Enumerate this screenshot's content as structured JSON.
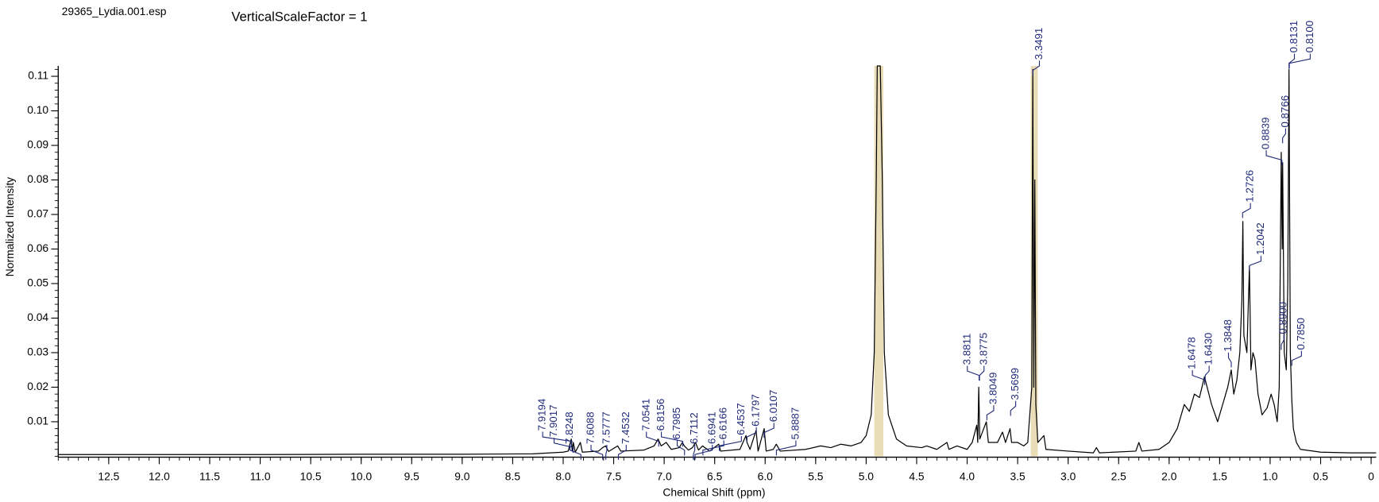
{
  "chart_data": {
    "type": "line",
    "file_name": "29365_Lydia.001.esp",
    "scale_note": "VerticalScaleFactor = 1",
    "xlabel": "Chemical Shift (ppm)",
    "ylabel": "Normalized Intensity",
    "xlim": [
      13.0,
      -0.05
    ],
    "ylim": [
      0,
      0.113
    ],
    "xticks": [
      12.5,
      {
        "value": 12,
        "label": "12.0"
      },
      11.5,
      {
        "value": 11,
        "label": "11.0"
      },
      10.5,
      {
        "value": 10,
        "label": "10.0"
      },
      9.5,
      {
        "value": 9,
        "label": "9.0"
      },
      8.5,
      {
        "value": 8,
        "label": "8.0"
      },
      7.5,
      {
        "value": 7,
        "label": "7.0"
      },
      6.5,
      {
        "value": 6,
        "label": "6.0"
      },
      5.5,
      {
        "value": 5,
        "label": "5.0"
      },
      4.5,
      {
        "value": 4,
        "label": "4.0"
      },
      3.5,
      {
        "value": 3,
        "label": "3.0"
      },
      2.5,
      {
        "value": 2,
        "label": "2.0"
      },
      1.5,
      {
        "value": 1,
        "label": "1.0"
      },
      0.5,
      0
    ],
    "yticks": [
      0.01,
      0.02,
      0.03,
      0.04,
      0.05,
      0.06,
      0.07,
      0.08,
      0.09,
      {
        "value": 0.1,
        "label": "0.10"
      },
      0.11
    ],
    "color": "#000000",
    "label_color": "#1f2a7a",
    "shade_color": "#e9ddb8",
    "shaded_regions": [
      [
        4.92,
        4.83
      ],
      [
        3.37,
        3.3
      ]
    ],
    "x": [
      13.0,
      12.0,
      11.0,
      10.0,
      9.0,
      8.3,
      8.0,
      7.95,
      7.92,
      7.91,
      7.9,
      7.88,
      7.83,
      7.81,
      7.65,
      7.61,
      7.58,
      7.55,
      7.46,
      7.43,
      7.2,
      7.1,
      7.06,
      7.03,
      6.98,
      6.93,
      6.85,
      6.82,
      6.8,
      6.76,
      6.72,
      6.69,
      6.66,
      6.62,
      6.55,
      6.46,
      6.44,
      6.25,
      6.19,
      6.18,
      6.15,
      6.09,
      6.07,
      6.01,
      5.99,
      5.92,
      5.89,
      5.85,
      5.6,
      5.45,
      5.35,
      5.25,
      5.15,
      5.05,
      5.0,
      4.95,
      4.92,
      4.9,
      4.89,
      4.86,
      4.84,
      4.82,
      4.78,
      4.7,
      4.6,
      4.45,
      4.4,
      4.3,
      4.2,
      4.18,
      4.1,
      4.0,
      3.95,
      3.905,
      3.895,
      3.885,
      3.875,
      3.81,
      3.79,
      3.7,
      3.65,
      3.62,
      3.575,
      3.56,
      3.5,
      3.44,
      3.4,
      3.36,
      3.35,
      3.34,
      3.33,
      3.32,
      3.3,
      3.24,
      3.22,
      3.0,
      2.75,
      2.72,
      2.69,
      2.33,
      2.3,
      2.27,
      2.1,
      2.0,
      1.92,
      1.85,
      1.8,
      1.75,
      1.7,
      1.65,
      1.58,
      1.52,
      1.47,
      1.42,
      1.385,
      1.36,
      1.33,
      1.3,
      1.28,
      1.27,
      1.26,
      1.23,
      1.205,
      1.19,
      1.17,
      1.15,
      1.12,
      1.08,
      1.03,
      0.99,
      0.96,
      0.93,
      0.91,
      0.89,
      0.88,
      0.876,
      0.86,
      0.84,
      0.825,
      0.813,
      0.81,
      0.8,
      0.785,
      0.77,
      0.74,
      0.7,
      0.5,
      0.2,
      -0.05
    ],
    "values": [
      0.0005,
      0.0005,
      0.0005,
      0.0006,
      0.0006,
      0.0007,
      0.0012,
      0.0015,
      0.005,
      0.0015,
      0.004,
      0.0012,
      0.004,
      0.0012,
      0.0015,
      0.0025,
      0.003,
      0.0014,
      0.003,
      0.0015,
      0.0018,
      0.003,
      0.005,
      0.003,
      0.004,
      0.002,
      0.0025,
      0.004,
      0.003,
      0.0018,
      0.0025,
      0.004,
      0.0018,
      0.003,
      0.0015,
      0.0035,
      0.0015,
      0.002,
      0.006,
      0.004,
      0.002,
      0.0075,
      0.0015,
      0.008,
      0.0015,
      0.002,
      0.0035,
      0.0015,
      0.002,
      0.003,
      0.0025,
      0.0035,
      0.003,
      0.004,
      0.006,
      0.012,
      0.03,
      0.08,
      0.113,
      0.113,
      0.08,
      0.03,
      0.012,
      0.005,
      0.003,
      0.0025,
      0.003,
      0.002,
      0.004,
      0.002,
      0.003,
      0.002,
      0.004,
      0.009,
      0.004,
      0.02,
      0.005,
      0.01,
      0.004,
      0.004,
      0.007,
      0.004,
      0.008,
      0.004,
      0.004,
      0.003,
      0.004,
      0.02,
      0.112,
      0.02,
      0.08,
      0.015,
      0.004,
      0.006,
      0.002,
      0.0015,
      0.001,
      0.0025,
      0.001,
      0.0015,
      0.004,
      0.0015,
      0.002,
      0.004,
      0.008,
      0.015,
      0.013,
      0.018,
      0.017,
      0.023,
      0.015,
      0.01,
      0.015,
      0.02,
      0.025,
      0.018,
      0.022,
      0.03,
      0.045,
      0.068,
      0.035,
      0.03,
      0.055,
      0.025,
      0.03,
      0.028,
      0.018,
      0.012,
      0.014,
      0.018,
      0.015,
      0.01,
      0.02,
      0.088,
      0.06,
      0.085,
      0.03,
      0.025,
      0.05,
      0.112,
      0.09,
      0.03,
      0.016,
      0.008,
      0.004,
      0.002,
      0.0012,
      0.001,
      0.001
    ],
    "peak_labels": [
      7.9194,
      7.9017,
      7.8248,
      7.6088,
      7.5777,
      7.4532,
      7.0541,
      6.8156,
      6.7985,
      6.7112,
      6.6941,
      6.6166,
      6.4537,
      6.1797,
      6.0107,
      5.8887,
      3.8811,
      3.8775,
      3.8049,
      3.5699,
      3.3491,
      1.6478,
      {
        "value": 1.643,
        "label": "1.6430"
      },
      1.3848,
      1.2726,
      1.2042,
      {
        "value": 0.89,
        "label": "0.8900"
      },
      0.8839,
      0.8766,
      {
        "value": 0.785,
        "label": "0.7850"
      },
      0.8131,
      {
        "value": 0.81,
        "label": "0.8100"
      }
    ]
  }
}
